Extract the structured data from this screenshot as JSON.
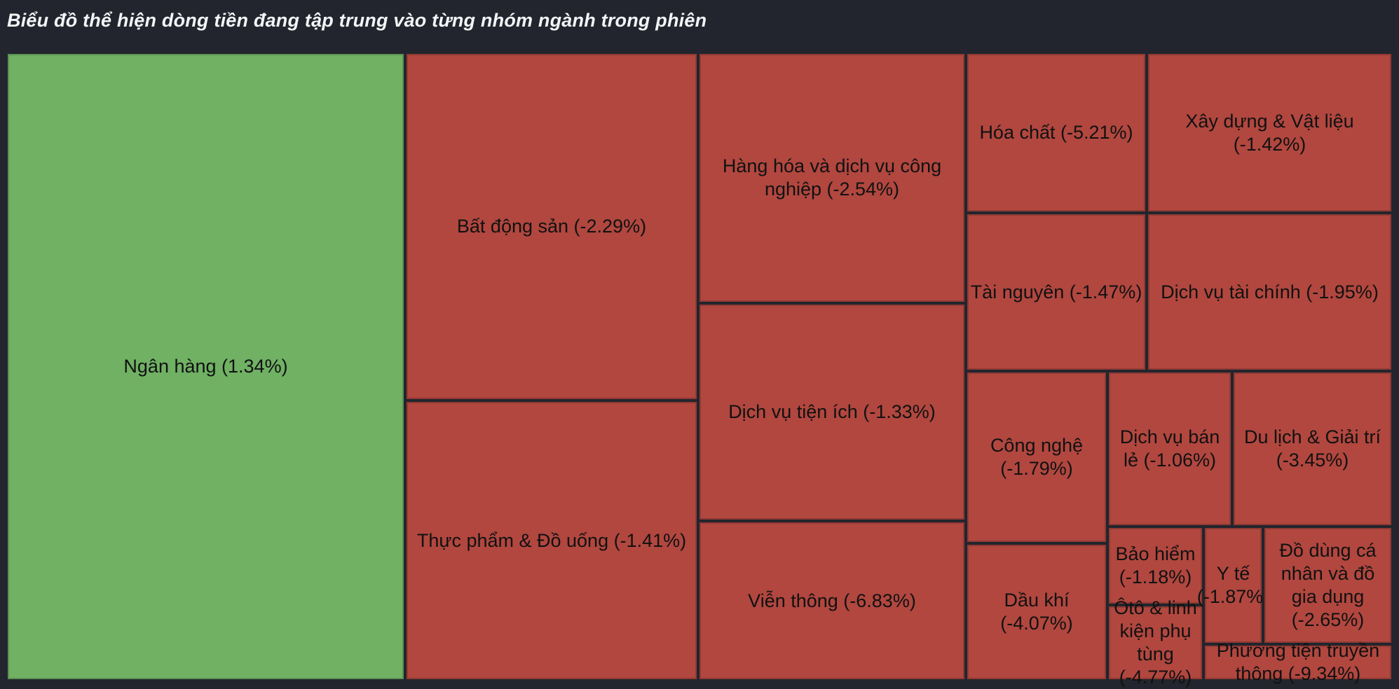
{
  "header": {
    "title": "Biểu đồ thể hiện dòng tiền đang tập trung vào từng nhóm ngành trong phiên"
  },
  "colors": {
    "positive": "#70b164",
    "negative": "#b1473f",
    "background": "#22252d",
    "label_text": "#111111",
    "title_text": "#f4f5f7"
  },
  "chart_data": {
    "type": "treemap",
    "title": "Biểu đồ thể hiện dòng tiền đang tập trung vào từng nhóm ngành trong phiên",
    "value_unit": "% change in session",
    "legend_position": "none",
    "sectors": [
      {
        "label": "Ngân hàng (1.34%)",
        "name": "Ngân hàng",
        "change_pct": 1.34,
        "direction": "up"
      },
      {
        "label": "Bất động sản (-2.29%)",
        "name": "Bất động sản",
        "change_pct": -2.29,
        "direction": "down"
      },
      {
        "label": "Thực phẩm & Đồ uống (-1.41%)",
        "name": "Thực phẩm & Đồ uống",
        "change_pct": -1.41,
        "direction": "down"
      },
      {
        "label": "Hàng hóa và dịch vụ công nghiệp (-2.54%)",
        "name": "Hàng hóa và dịch vụ công nghiệp",
        "change_pct": -2.54,
        "direction": "down"
      },
      {
        "label": "Dịch vụ tiện ích (-1.33%)",
        "name": "Dịch vụ tiện ích",
        "change_pct": -1.33,
        "direction": "down"
      },
      {
        "label": "Viễn thông (-6.83%)",
        "name": "Viễn thông",
        "change_pct": -6.83,
        "direction": "down"
      },
      {
        "label": "Hóa chất (-5.21%)",
        "name": "Hóa chất",
        "change_pct": -5.21,
        "direction": "down"
      },
      {
        "label": "Xây dựng & Vật liệu (-1.42%)",
        "name": "Xây dựng & Vật liệu",
        "change_pct": -1.42,
        "direction": "down"
      },
      {
        "label": "Tài nguyên (-1.47%)",
        "name": "Tài nguyên",
        "change_pct": -1.47,
        "direction": "down"
      },
      {
        "label": "Dịch vụ tài chính (-1.95%)",
        "name": "Dịch vụ tài chính",
        "change_pct": -1.95,
        "direction": "down"
      },
      {
        "label": "Công nghệ (-1.79%)",
        "name": "Công nghệ",
        "change_pct": -1.79,
        "direction": "down"
      },
      {
        "label": "Dịch vụ bán lẻ (-1.06%)",
        "name": "Dịch vụ bán lẻ",
        "change_pct": -1.06,
        "direction": "down"
      },
      {
        "label": "Du lịch & Giải trí (-3.45%)",
        "name": "Du lịch & Giải trí",
        "change_pct": -3.45,
        "direction": "down"
      },
      {
        "label": "Dầu khí (-4.07%)",
        "name": "Dầu khí",
        "change_pct": -4.07,
        "direction": "down"
      },
      {
        "label": "Bảo hiểm (-1.18%)",
        "name": "Bảo hiểm",
        "change_pct": -1.18,
        "direction": "down"
      },
      {
        "label": "Ôtô & linh kiện phụ tùng (-4.77%)",
        "name": "Ôtô & linh kiện phụ tùng",
        "change_pct": -4.77,
        "direction": "down"
      },
      {
        "label": "Y tế (-1.87%)",
        "name": "Y tế",
        "change_pct": -1.87,
        "direction": "down"
      },
      {
        "label": "Đồ dùng cá nhân và đồ gia dụng (-2.65%)",
        "name": "Đồ dùng cá nhân và đồ gia dụng",
        "change_pct": -2.65,
        "direction": "down"
      },
      {
        "label": "Phương tiện truyền thông (-9.34%)",
        "name": "Phương tiện truyền thông",
        "change_pct": -9.34,
        "direction": "down"
      }
    ]
  }
}
